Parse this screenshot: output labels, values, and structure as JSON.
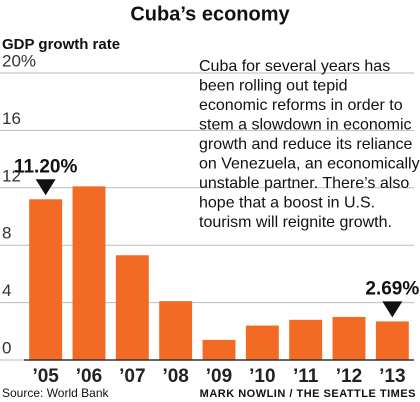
{
  "chart_data": {
    "type": "bar",
    "title": "Cuba’s economy",
    "subtitle": "GDP growth rate",
    "categories": [
      "’05",
      "’06",
      "’07",
      "’08",
      "’09",
      "’10",
      "’11",
      "’12",
      "’13"
    ],
    "values": [
      11.2,
      12.1,
      7.3,
      4.1,
      1.4,
      2.4,
      2.8,
      3.0,
      2.69
    ],
    "value_labels": [
      "11.20%",
      null,
      null,
      null,
      null,
      null,
      null,
      null,
      "2.69%"
    ],
    "color": "#f26a24",
    "ylim": [
      0,
      20
    ],
    "yticks": [
      0,
      4,
      8,
      12,
      16,
      {
        "value": 20,
        "label": "20%"
      }
    ],
    "grid": true,
    "annotation": [
      "Cuba for several years has",
      "been rolling out tepid",
      "economic reforms in order to",
      "stem a slowdown in economic",
      "growth and reduce its reliance",
      "on Venezuela, an economically",
      "unstable partner. There’s also",
      "hope that a boost in U.S.",
      "tourism will reignite growth."
    ],
    "source": "Source: World Bank",
    "credit": "MARK NOWLIN / THE SEATTLE TIMES"
  }
}
